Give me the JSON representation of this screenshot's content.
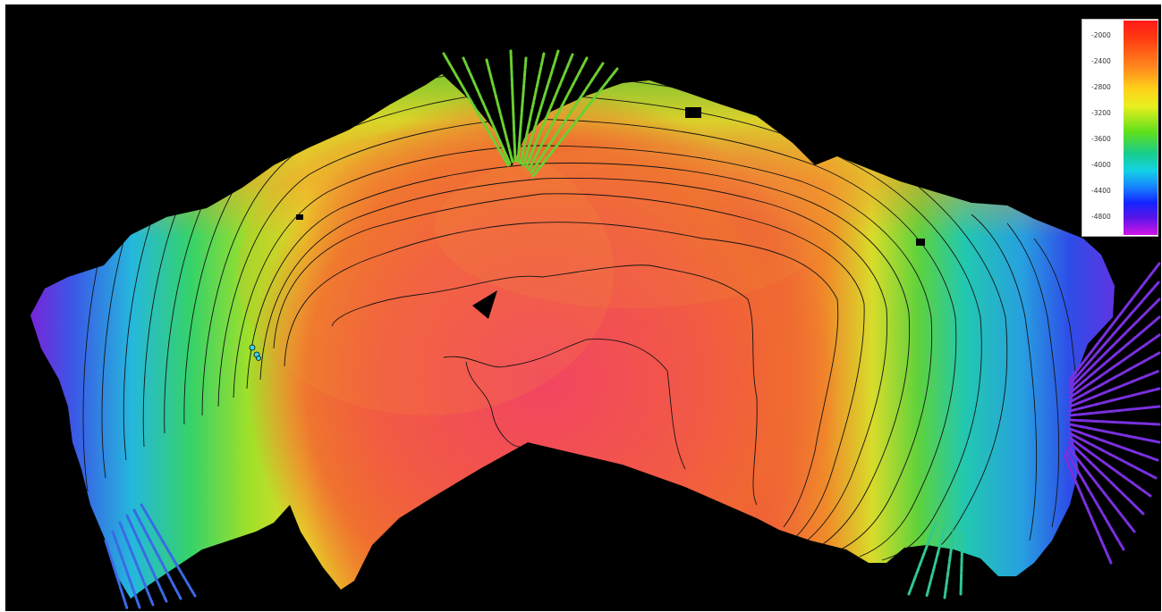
{
  "colorbar": {
    "ticks": [
      "-2000",
      "-2400",
      "-2800",
      "-3200",
      "-3600",
      "-4000",
      "-4400",
      "-4800"
    ]
  },
  "colors": {
    "background": "#000000",
    "shallow": "#ff2a2a",
    "deep": "#c814e6"
  }
}
